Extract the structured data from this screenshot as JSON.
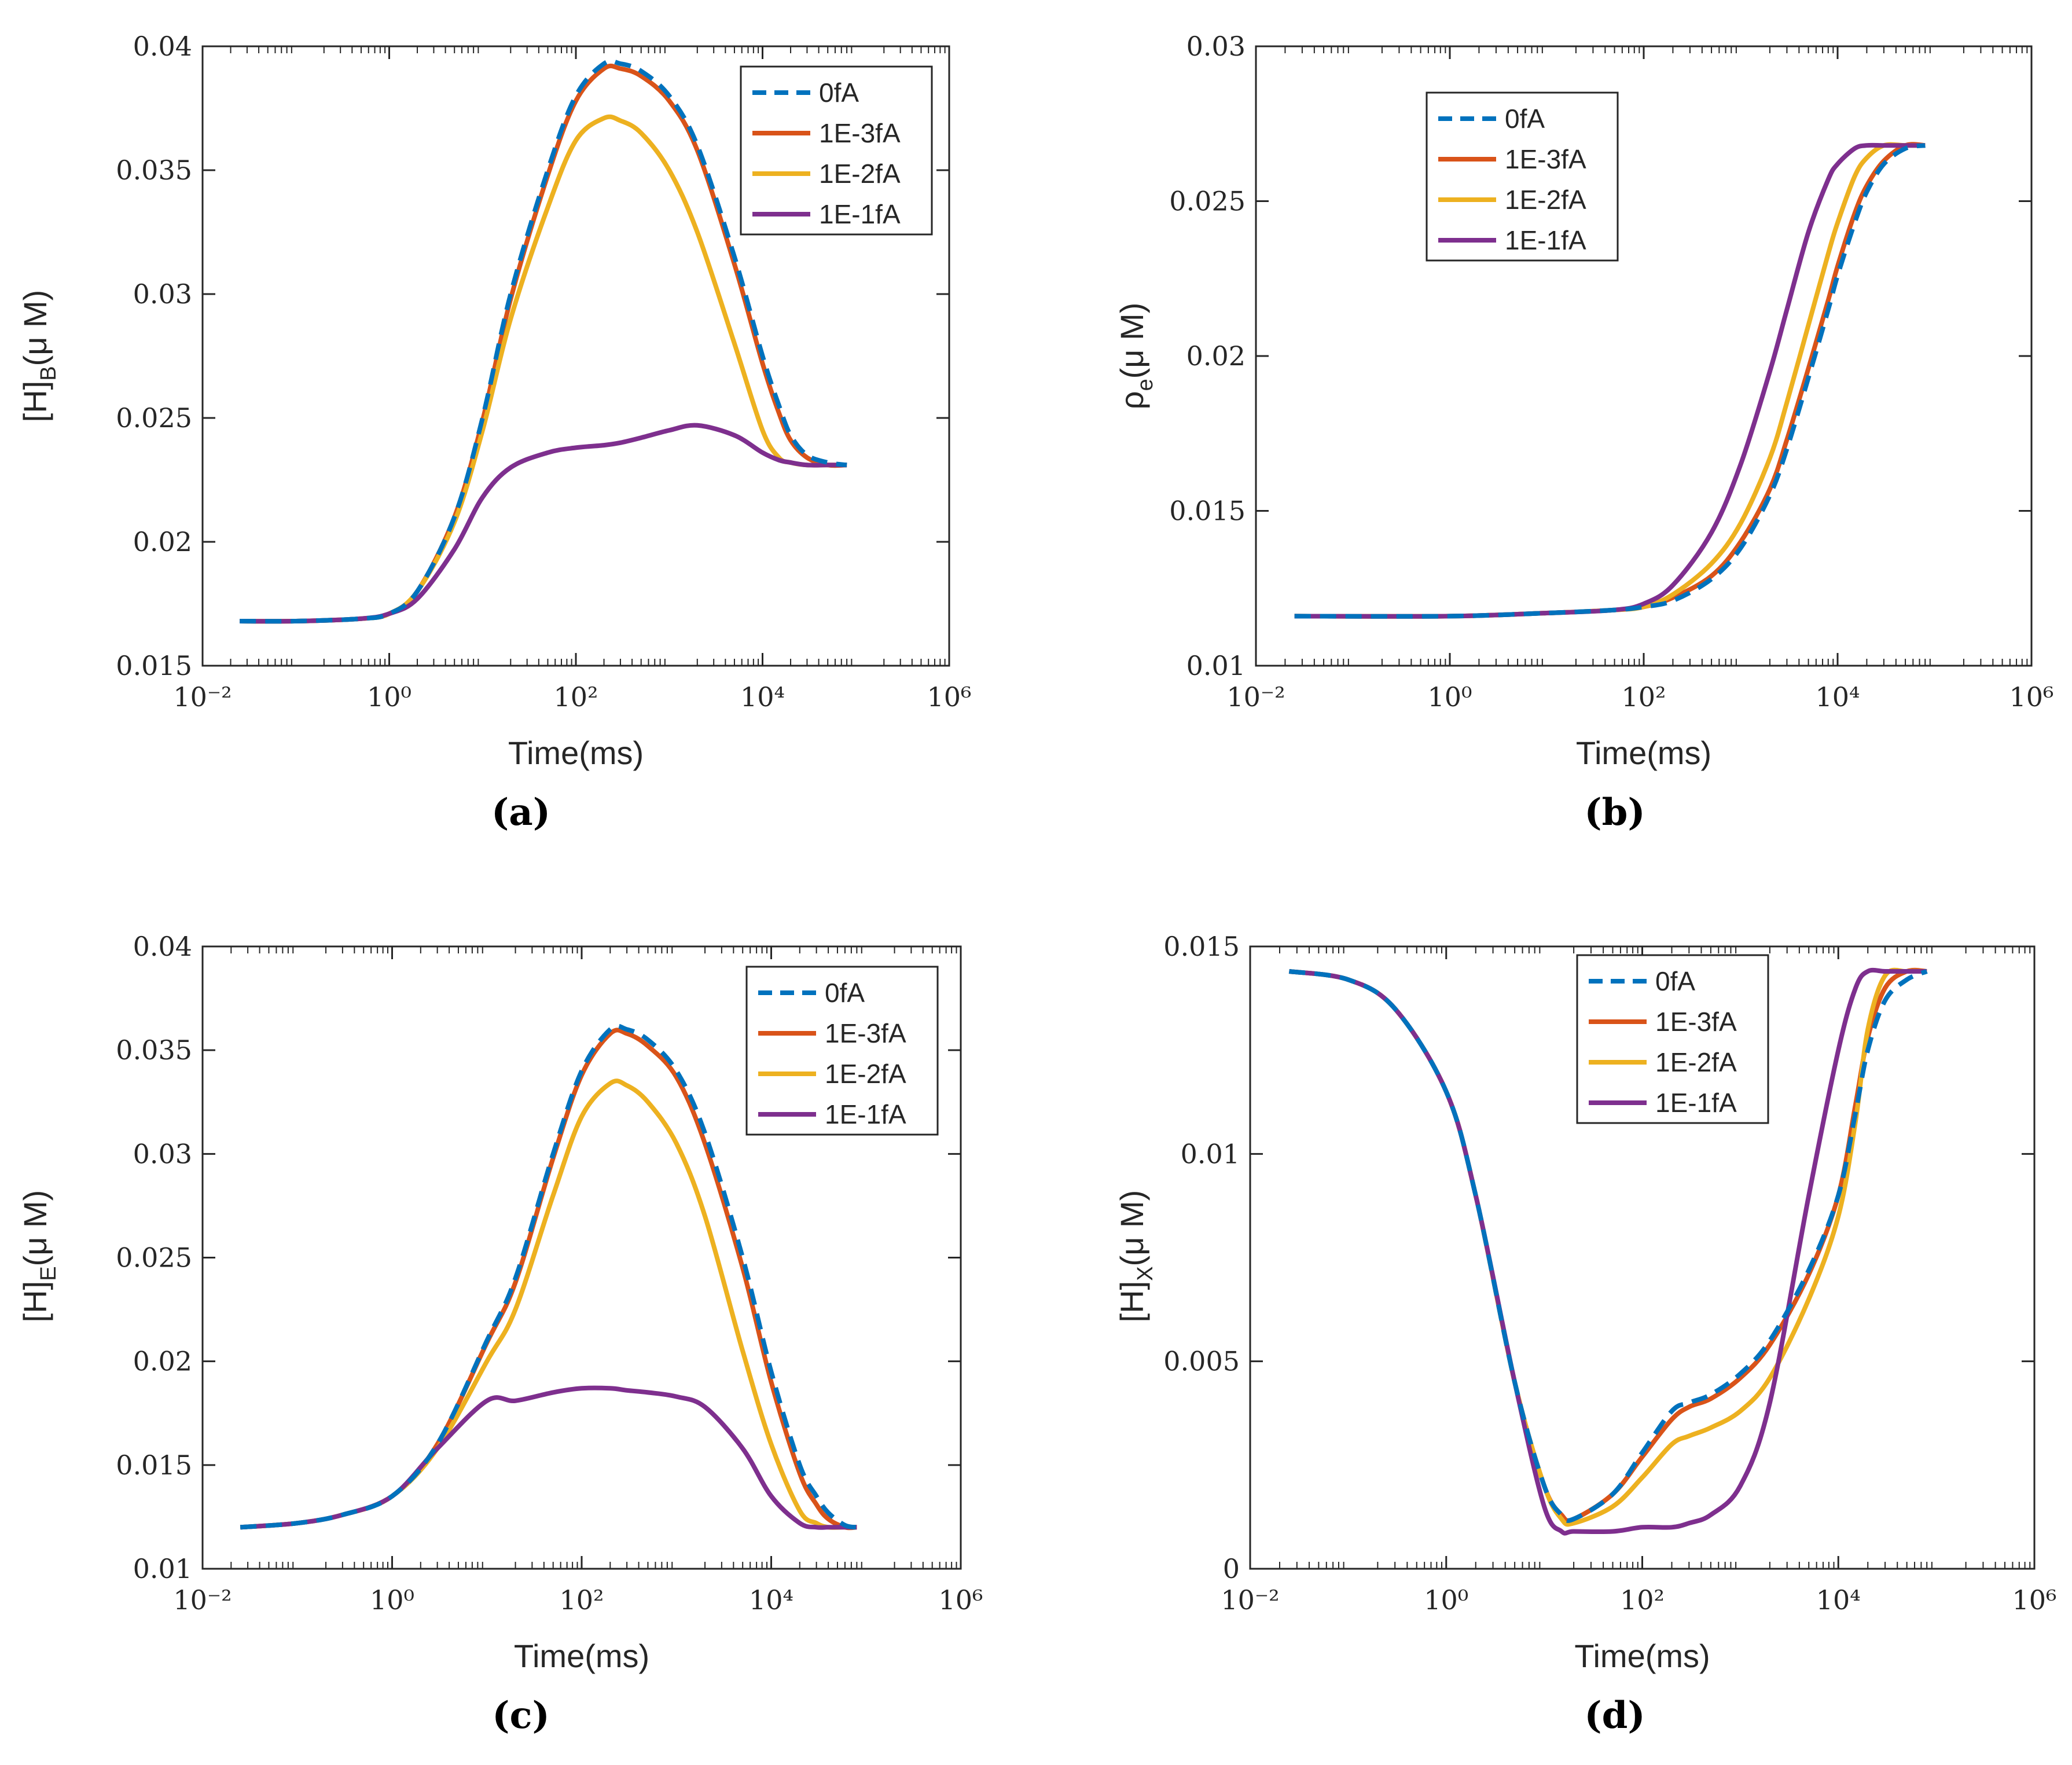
{
  "colors": {
    "0fA": "#0072BD",
    "1E-3fA": "#D95319",
    "1E-2fA": "#EDB120",
    "1E-1fA": "#7E2F8E",
    "axis": "#262626"
  },
  "chart_data": [
    {
      "panel": "a",
      "caption": "(a)",
      "type": "line",
      "xscale": "log",
      "xlim": [
        0.01,
        1000000
      ],
      "xticks": [
        "10⁻²",
        "10⁰",
        "10²",
        "10⁴",
        "10⁶"
      ],
      "ylim": [
        0.015,
        0.04
      ],
      "yticks": [
        "0.015",
        "0.02",
        "0.025",
        "0.03",
        "0.035",
        "0.04"
      ],
      "xlabel": "Time(ms)",
      "ylabel_main": "[H]",
      "ylabel_sub": "B",
      "ylabel_unit": "(μ M)",
      "legend_position": "top-right",
      "x": [
        0.025,
        0.1,
        0.5,
        1,
        2,
        5,
        10,
        20,
        50,
        100,
        200,
        300,
        500,
        1000,
        2000,
        5000,
        10000,
        15000,
        20000,
        30000,
        50000,
        80000
      ],
      "series": [
        {
          "name": "0fA",
          "style": "dashed",
          "values": [
            0.0168,
            0.0168,
            0.0169,
            0.0171,
            0.018,
            0.021,
            0.025,
            0.03,
            0.035,
            0.038,
            0.0393,
            0.0393,
            0.039,
            0.038,
            0.036,
            0.0315,
            0.0275,
            0.0255,
            0.0243,
            0.0235,
            0.0232,
            0.0231
          ]
        },
        {
          "name": "1E-3fA",
          "style": "solid",
          "values": [
            0.0168,
            0.0168,
            0.0169,
            0.0171,
            0.018,
            0.021,
            0.0249,
            0.0298,
            0.0348,
            0.0378,
            0.0391,
            0.0391,
            0.0388,
            0.0378,
            0.0358,
            0.0312,
            0.0272,
            0.0252,
            0.0241,
            0.0234,
            0.0231,
            0.0231
          ]
        },
        {
          "name": "1E-2fA",
          "style": "solid",
          "values": [
            0.0168,
            0.0168,
            0.0169,
            0.0171,
            0.018,
            0.0208,
            0.0245,
            0.029,
            0.0335,
            0.0362,
            0.0371,
            0.037,
            0.0365,
            0.035,
            0.0325,
            0.028,
            0.0245,
            0.0234,
            0.0232,
            0.0231,
            0.0231,
            0.0231
          ]
        },
        {
          "name": "1E-1fA",
          "style": "solid",
          "values": [
            0.0168,
            0.0168,
            0.0169,
            0.0171,
            0.0177,
            0.0197,
            0.0218,
            0.023,
            0.0236,
            0.0238,
            0.0239,
            0.024,
            0.0242,
            0.0245,
            0.0247,
            0.0243,
            0.0236,
            0.0233,
            0.0232,
            0.0231,
            0.0231,
            0.0231
          ]
        }
      ]
    },
    {
      "panel": "b",
      "caption": "(b)",
      "type": "line",
      "xscale": "log",
      "xlim": [
        0.01,
        1000000
      ],
      "xticks": [
        "10⁻²",
        "10⁰",
        "10²",
        "10⁴",
        "10⁶"
      ],
      "ylim": [
        0.01,
        0.03
      ],
      "yticks": [
        "0.01",
        "0.015",
        "0.02",
        "0.025",
        "0.03"
      ],
      "xlabel": "Time(ms)",
      "ylabel_main": "ρ",
      "ylabel_sub": "e",
      "ylabel_unit": "(μ M)",
      "legend_position": "top-left",
      "x": [
        0.025,
        1,
        10,
        50,
        100,
        200,
        500,
        1000,
        2000,
        3000,
        5000,
        8000,
        10000,
        15000,
        20000,
        30000,
        50000,
        80000
      ],
      "series": [
        {
          "name": "0fA",
          "style": "dashed",
          "values": [
            0.0116,
            0.0116,
            0.0117,
            0.0118,
            0.0119,
            0.0121,
            0.0128,
            0.0138,
            0.0155,
            0.017,
            0.0193,
            0.0215,
            0.0226,
            0.0243,
            0.0253,
            0.0262,
            0.0267,
            0.0268
          ]
        },
        {
          "name": "1E-3fA",
          "style": "solid",
          "values": [
            0.0116,
            0.0116,
            0.0117,
            0.0118,
            0.0119,
            0.0122,
            0.0129,
            0.014,
            0.0157,
            0.0173,
            0.0196,
            0.0218,
            0.0229,
            0.0246,
            0.0255,
            0.0263,
            0.0268,
            0.0268
          ]
        },
        {
          "name": "1E-2fA",
          "style": "solid",
          "values": [
            0.0116,
            0.0116,
            0.0117,
            0.0118,
            0.0119,
            0.0123,
            0.0133,
            0.0146,
            0.0167,
            0.0185,
            0.021,
            0.0233,
            0.0243,
            0.0258,
            0.0264,
            0.0268,
            0.0268,
            0.0268
          ]
        },
        {
          "name": "1E-1fA",
          "style": "solid",
          "values": [
            0.0116,
            0.0116,
            0.0117,
            0.0118,
            0.012,
            0.0126,
            0.0143,
            0.0165,
            0.0195,
            0.0215,
            0.024,
            0.0257,
            0.0262,
            0.0267,
            0.0268,
            0.0268,
            0.0268,
            0.0268
          ]
        }
      ]
    },
    {
      "panel": "c",
      "caption": "(c)",
      "type": "line",
      "xscale": "log",
      "xlim": [
        0.01,
        1000000
      ],
      "xticks": [
        "10⁻²",
        "10⁰",
        "10²",
        "10⁴",
        "10⁶"
      ],
      "ylim": [
        0.01,
        0.04
      ],
      "yticks": [
        "0.01",
        "0.015",
        "0.02",
        "0.025",
        "0.03",
        "0.035",
        "0.04"
      ],
      "xlabel": "Time(ms)",
      "ylabel_main": "[H]",
      "ylabel_sub": "E",
      "ylabel_unit": "(μ M)",
      "legend_position": "top-right",
      "x": [
        0.025,
        0.1,
        0.3,
        1,
        3,
        10,
        20,
        50,
        100,
        200,
        300,
        500,
        1000,
        2000,
        5000,
        10000,
        20000,
        30000,
        40000,
        60000,
        80000
      ],
      "series": [
        {
          "name": "0fA",
          "style": "dashed",
          "values": [
            0.012,
            0.0122,
            0.0126,
            0.0135,
            0.016,
            0.021,
            0.024,
            0.03,
            0.034,
            0.036,
            0.036,
            0.0355,
            0.034,
            0.031,
            0.025,
            0.0195,
            0.015,
            0.0135,
            0.0127,
            0.0121,
            0.012
          ]
        },
        {
          "name": "1E-3fA",
          "style": "solid",
          "values": [
            0.012,
            0.0122,
            0.0126,
            0.0135,
            0.016,
            0.0209,
            0.0238,
            0.0298,
            0.0338,
            0.0358,
            0.0358,
            0.0352,
            0.0337,
            0.0305,
            0.0245,
            0.019,
            0.0146,
            0.0131,
            0.0124,
            0.012,
            0.012
          ]
        },
        {
          "name": "1E-2fA",
          "style": "solid",
          "values": [
            0.012,
            0.0122,
            0.0126,
            0.0135,
            0.0158,
            0.02,
            0.0225,
            0.028,
            0.0318,
            0.0334,
            0.0333,
            0.0325,
            0.0305,
            0.027,
            0.0205,
            0.016,
            0.0128,
            0.0122,
            0.012,
            0.012,
            0.012
          ]
        },
        {
          "name": "1E-1fA",
          "style": "solid",
          "values": [
            0.012,
            0.0122,
            0.0126,
            0.0135,
            0.0158,
            0.0181,
            0.0181,
            0.0185,
            0.0187,
            0.0187,
            0.0186,
            0.0185,
            0.0183,
            0.0178,
            0.0158,
            0.0135,
            0.0122,
            0.012,
            0.012,
            0.012,
            0.012
          ]
        }
      ]
    },
    {
      "panel": "d",
      "caption": "(d)",
      "type": "line",
      "xscale": "log",
      "xlim": [
        0.01,
        1000000
      ],
      "xticks": [
        "10⁻²",
        "10⁰",
        "10²",
        "10⁴",
        "10⁶"
      ],
      "ylim": [
        0,
        0.015
      ],
      "yticks": [
        "0",
        "0.005",
        "0.01",
        "0.015"
      ],
      "xlabel": "Time(ms)",
      "ylabel_main": "[H]",
      "ylabel_sub": "X",
      "ylabel_unit": "(μ M)",
      "legend_position": "top-right",
      "x": [
        0.025,
        0.1,
        0.3,
        1,
        2,
        5,
        10,
        15,
        20,
        50,
        100,
        200,
        300,
        500,
        1000,
        2000,
        5000,
        10000,
        15000,
        20000,
        30000,
        50000,
        80000
      ],
      "series": [
        {
          "name": "0fA",
          "style": "dashed",
          "values": [
            0.0144,
            0.0142,
            0.0135,
            0.0115,
            0.009,
            0.0045,
            0.002,
            0.0013,
            0.0012,
            0.0018,
            0.0028,
            0.0038,
            0.004,
            0.0042,
            0.0047,
            0.0055,
            0.0072,
            0.009,
            0.011,
            0.0125,
            0.0137,
            0.0142,
            0.0144
          ]
        },
        {
          "name": "1E-3fA",
          "style": "solid",
          "values": [
            0.0144,
            0.0142,
            0.0135,
            0.0115,
            0.009,
            0.0045,
            0.002,
            0.0013,
            0.0012,
            0.0018,
            0.0027,
            0.0036,
            0.0039,
            0.0041,
            0.0046,
            0.0054,
            0.0071,
            0.009,
            0.0112,
            0.0128,
            0.014,
            0.0144,
            0.0144
          ]
        },
        {
          "name": "1E-2fA",
          "style": "solid",
          "values": [
            0.0144,
            0.0142,
            0.0135,
            0.0115,
            0.009,
            0.0045,
            0.002,
            0.0012,
            0.0011,
            0.0015,
            0.0022,
            0.003,
            0.0032,
            0.0034,
            0.0038,
            0.0046,
            0.0065,
            0.0085,
            0.0108,
            0.013,
            0.0143,
            0.0144,
            0.0144
          ]
        },
        {
          "name": "1E-1fA",
          "style": "solid",
          "values": [
            0.0144,
            0.0142,
            0.0135,
            0.0115,
            0.009,
            0.0045,
            0.0015,
            0.0009,
            0.0009,
            0.0009,
            0.001,
            0.001,
            0.0011,
            0.0013,
            0.002,
            0.004,
            0.009,
            0.0125,
            0.014,
            0.0144,
            0.0144,
            0.0144,
            0.0144
          ]
        }
      ]
    }
  ]
}
